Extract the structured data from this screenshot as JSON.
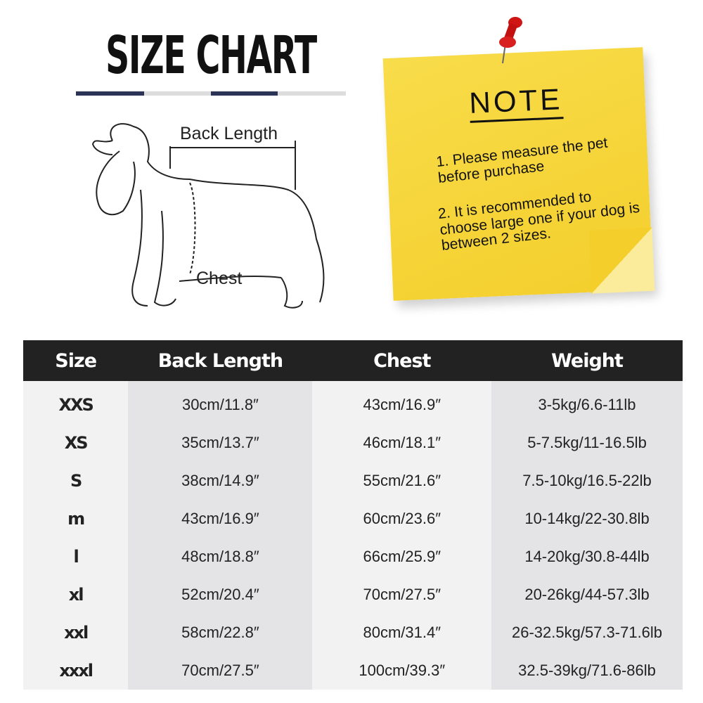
{
  "title": "SIZE CHART",
  "diagram": {
    "back_length_label": "Back Length",
    "chest_label": "Chest"
  },
  "note": {
    "title": "NOTE",
    "items": [
      "1.  Please measure the pet before purchase",
      "2.  It is recommended to choose large one if your dog is between 2 sizes."
    ],
    "color": "#f6d53a"
  },
  "table": {
    "headers": [
      "Size",
      "Back Length",
      "Chest",
      "Weight"
    ],
    "rows": [
      [
        "XXS",
        "30cm/11.8″",
        "43cm/16.9″",
        "3-5kg/6.6-11lb"
      ],
      [
        "XS",
        "35cm/13.7″",
        "46cm/18.1″",
        "5-7.5kg/11-16.5lb"
      ],
      [
        "S",
        "38cm/14.9″",
        "55cm/21.6″",
        "7.5-10kg/16.5-22lb"
      ],
      [
        "m",
        "43cm/16.9″",
        "60cm/23.6″",
        "10-14kg/22-30.8lb"
      ],
      [
        "l",
        "48cm/18.8″",
        "66cm/25.9″",
        "14-20kg/30.8-44lb"
      ],
      [
        "xl",
        "52cm/20.4″",
        "70cm/27.5″",
        "20-26kg/44-57.3lb"
      ],
      [
        "xxl",
        "58cm/22.8″",
        "80cm/31.4″",
        "26-32.5kg/57.3-71.6lb"
      ],
      [
        "xxxl",
        "70cm/27.5″",
        "100cm/39.3″",
        "32.5-39kg/71.6-86lb"
      ]
    ]
  }
}
